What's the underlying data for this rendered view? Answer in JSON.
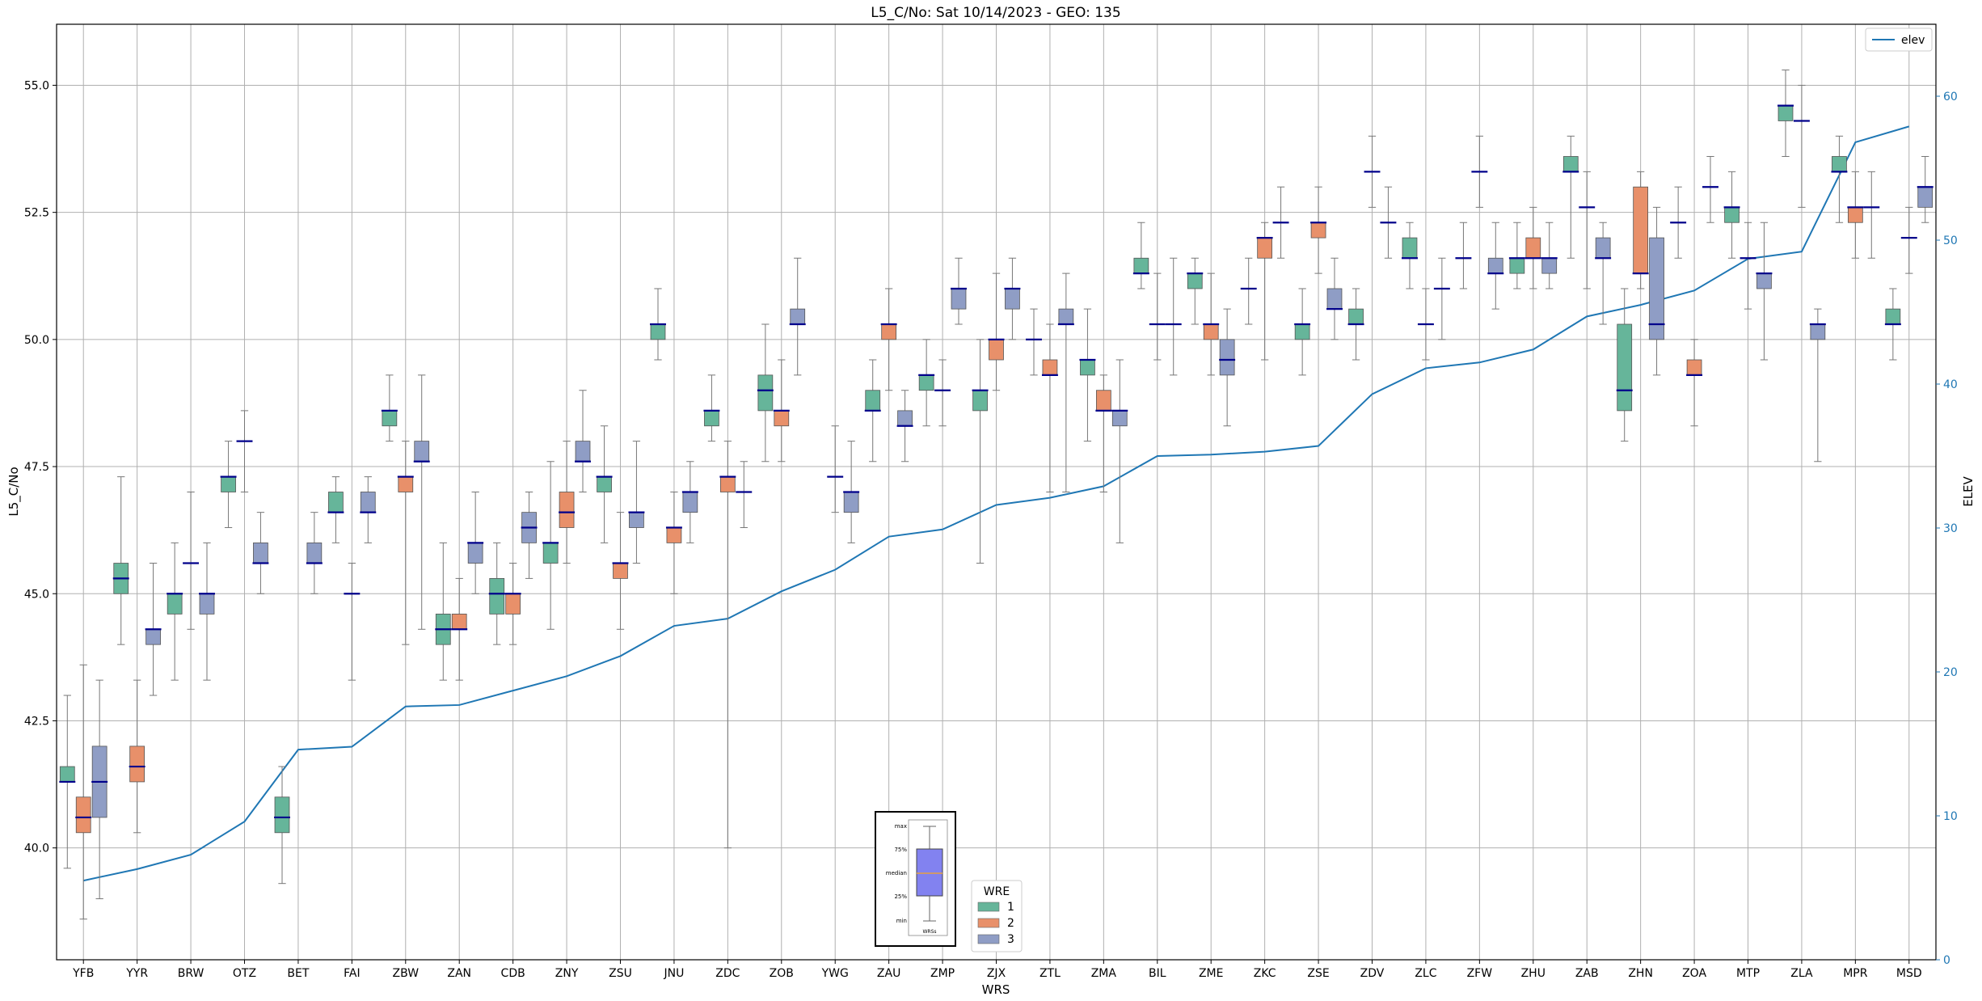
{
  "chart_data": {
    "type": "box",
    "title": "L5_C/No: Sat 10/14/2023 - GEO: 135",
    "xlabel": "WRS",
    "ylabel": "L5_C/No",
    "y2label": "ELEV",
    "ylim": [
      37.8,
      56.2
    ],
    "y2lim": [
      0,
      65
    ],
    "yticks": [
      "40.0",
      "42.5",
      "45.0",
      "47.5",
      "50.0",
      "52.5",
      "55.0"
    ],
    "y2ticks": [
      "0",
      "10",
      "20",
      "30",
      "40",
      "50",
      "60"
    ],
    "grid": true,
    "categories": [
      "YFB",
      "YYR",
      "BRW",
      "OTZ",
      "BET",
      "FAI",
      "ZBW",
      "ZAN",
      "CDB",
      "ZNY",
      "ZSU",
      "JNU",
      "ZDC",
      "ZOB",
      "YWG",
      "ZAU",
      "ZMP",
      "ZJX",
      "ZTL",
      "ZMA",
      "BIL",
      "ZME",
      "ZKC",
      "ZSE",
      "ZDV",
      "ZLC",
      "ZFW",
      "ZHU",
      "ZAB",
      "ZHN",
      "ZOA",
      "MTP",
      "ZLA",
      "MPR",
      "MSD"
    ],
    "wre_colors": {
      "1": "#66b59a",
      "2": "#e8906a",
      "3": "#8f9dc5"
    },
    "median_color": "#00008b",
    "whisker_color": "#777777",
    "elev_color": "#1f77b4",
    "boxes": [
      {
        "cat": "YFB",
        "wre": 1,
        "min": 39.6,
        "q1": 41.3,
        "med": 41.3,
        "q3": 41.6,
        "max": 43.0
      },
      {
        "cat": "YFB",
        "wre": 2,
        "min": 38.6,
        "q1": 40.3,
        "med": 40.6,
        "q3": 41.0,
        "max": 43.6
      },
      {
        "cat": "YFB",
        "wre": 3,
        "min": 39.0,
        "q1": 40.6,
        "med": 41.3,
        "q3": 42.0,
        "max": 43.3
      },
      {
        "cat": "YYR",
        "wre": 1,
        "min": 44.0,
        "q1": 45.0,
        "med": 45.3,
        "q3": 45.6,
        "max": 47.3
      },
      {
        "cat": "YYR",
        "wre": 2,
        "min": 40.3,
        "q1": 41.3,
        "med": 41.6,
        "q3": 42.0,
        "max": 43.3
      },
      {
        "cat": "YYR",
        "wre": 3,
        "min": 43.0,
        "q1": 44.0,
        "med": 44.3,
        "q3": 44.3,
        "max": 45.6
      },
      {
        "cat": "BRW",
        "wre": 1,
        "min": 43.3,
        "q1": 44.6,
        "med": 45.0,
        "q3": 45.0,
        "max": 46.0
      },
      {
        "cat": "BRW",
        "wre": 2,
        "min": 44.3,
        "q1": 45.6,
        "med": 45.6,
        "q3": 45.6,
        "max": 47.0
      },
      {
        "cat": "BRW",
        "wre": 3,
        "min": 43.3,
        "q1": 44.6,
        "med": 45.0,
        "q3": 45.0,
        "max": 46.0
      },
      {
        "cat": "OTZ",
        "wre": 1,
        "min": 46.3,
        "q1": 47.0,
        "med": 47.3,
        "q3": 47.3,
        "max": 48.0
      },
      {
        "cat": "OTZ",
        "wre": 2,
        "min": 47.0,
        "q1": 48.0,
        "med": 48.0,
        "q3": 48.0,
        "max": 48.6
      },
      {
        "cat": "OTZ",
        "wre": 3,
        "min": 45.0,
        "q1": 45.6,
        "med": 45.6,
        "q3": 46.0,
        "max": 46.6
      },
      {
        "cat": "BET",
        "wre": 1,
        "min": 39.3,
        "q1": 40.3,
        "med": 40.6,
        "q3": 41.0,
        "max": 41.6
      },
      {
        "cat": "BET",
        "wre": 3,
        "min": 45.0,
        "q1": 45.6,
        "med": 45.6,
        "q3": 46.0,
        "max": 46.6
      },
      {
        "cat": "FAI",
        "wre": 1,
        "min": 46.0,
        "q1": 46.6,
        "med": 46.6,
        "q3": 47.0,
        "max": 47.3
      },
      {
        "cat": "FAI",
        "wre": 2,
        "min": 43.3,
        "q1": 45.0,
        "med": 45.0,
        "q3": 45.0,
        "max": 45.6
      },
      {
        "cat": "FAI",
        "wre": 3,
        "min": 46.0,
        "q1": 46.6,
        "med": 46.6,
        "q3": 47.0,
        "max": 47.3
      },
      {
        "cat": "ZBW",
        "wre": 1,
        "min": 48.0,
        "q1": 48.3,
        "med": 48.6,
        "q3": 48.6,
        "max": 49.3
      },
      {
        "cat": "ZBW",
        "wre": 2,
        "min": 44.0,
        "q1": 47.0,
        "med": 47.3,
        "q3": 47.3,
        "max": 48.0
      },
      {
        "cat": "ZBW",
        "wre": 3,
        "min": 44.3,
        "q1": 47.6,
        "med": 47.6,
        "q3": 48.0,
        "max": 49.3
      },
      {
        "cat": "ZAN",
        "wre": 1,
        "min": 43.3,
        "q1": 44.0,
        "med": 44.3,
        "q3": 44.6,
        "max": 46.0
      },
      {
        "cat": "ZAN",
        "wre": 2,
        "min": 43.3,
        "q1": 44.3,
        "med": 44.3,
        "q3": 44.6,
        "max": 45.3
      },
      {
        "cat": "ZAN",
        "wre": 3,
        "min": 45.0,
        "q1": 45.6,
        "med": 46.0,
        "q3": 46.0,
        "max": 47.0
      },
      {
        "cat": "CDB",
        "wre": 1,
        "min": 44.0,
        "q1": 44.6,
        "med": 45.0,
        "q3": 45.3,
        "max": 46.0
      },
      {
        "cat": "CDB",
        "wre": 2,
        "min": 44.0,
        "q1": 44.6,
        "med": 45.0,
        "q3": 45.0,
        "max": 45.6
      },
      {
        "cat": "CDB",
        "wre": 3,
        "min": 45.3,
        "q1": 46.0,
        "med": 46.3,
        "q3": 46.6,
        "max": 47.0
      },
      {
        "cat": "ZNY",
        "wre": 1,
        "min": 44.3,
        "q1": 45.6,
        "med": 46.0,
        "q3": 46.0,
        "max": 47.6
      },
      {
        "cat": "ZNY",
        "wre": 2,
        "min": 45.6,
        "q1": 46.3,
        "med": 46.6,
        "q3": 47.0,
        "max": 48.0
      },
      {
        "cat": "ZNY",
        "wre": 3,
        "min": 47.0,
        "q1": 47.6,
        "med": 47.6,
        "q3": 48.0,
        "max": 49.0
      },
      {
        "cat": "ZSU",
        "wre": 1,
        "min": 46.0,
        "q1": 47.0,
        "med": 47.3,
        "q3": 47.3,
        "max": 48.3
      },
      {
        "cat": "ZSU",
        "wre": 2,
        "min": 44.3,
        "q1": 45.3,
        "med": 45.6,
        "q3": 45.6,
        "max": 46.6
      },
      {
        "cat": "ZSU",
        "wre": 3,
        "min": 45.6,
        "q1": 46.3,
        "med": 46.6,
        "q3": 46.6,
        "max": 48.0
      },
      {
        "cat": "JNU",
        "wre": 1,
        "min": 49.6,
        "q1": 50.0,
        "med": 50.3,
        "q3": 50.3,
        "max": 51.0
      },
      {
        "cat": "JNU",
        "wre": 2,
        "min": 45.0,
        "q1": 46.0,
        "med": 46.3,
        "q3": 46.3,
        "max": 47.0
      },
      {
        "cat": "JNU",
        "wre": 3,
        "min": 46.0,
        "q1": 46.6,
        "med": 47.0,
        "q3": 47.0,
        "max": 47.6
      },
      {
        "cat": "ZDC",
        "wre": 1,
        "min": 48.0,
        "q1": 48.3,
        "med": 48.6,
        "q3": 48.6,
        "max": 49.3
      },
      {
        "cat": "ZDC",
        "wre": 2,
        "min": 40.0,
        "q1": 47.0,
        "med": 47.3,
        "q3": 47.3,
        "max": 48.0
      },
      {
        "cat": "ZDC",
        "wre": 3,
        "min": 46.3,
        "q1": 47.0,
        "med": 47.0,
        "q3": 47.0,
        "max": 47.6
      },
      {
        "cat": "ZOB",
        "wre": 1,
        "min": 47.6,
        "q1": 48.6,
        "med": 49.0,
        "q3": 49.3,
        "max": 50.3
      },
      {
        "cat": "ZOB",
        "wre": 2,
        "min": 47.6,
        "q1": 48.3,
        "med": 48.6,
        "q3": 48.6,
        "max": 49.6
      },
      {
        "cat": "ZOB",
        "wre": 3,
        "min": 49.3,
        "q1": 50.3,
        "med": 50.3,
        "q3": 50.6,
        "max": 51.6
      },
      {
        "cat": "YWG",
        "wre": 2,
        "min": 46.6,
        "q1": 47.3,
        "med": 47.3,
        "q3": 47.3,
        "max": 48.3
      },
      {
        "cat": "YWG",
        "wre": 3,
        "min": 46.0,
        "q1": 46.6,
        "med": 47.0,
        "q3": 47.0,
        "max": 48.0
      },
      {
        "cat": "ZAU",
        "wre": 1,
        "min": 47.6,
        "q1": 48.6,
        "med": 48.6,
        "q3": 49.0,
        "max": 49.6
      },
      {
        "cat": "ZAU",
        "wre": 2,
        "min": 49.0,
        "q1": 50.0,
        "med": 50.3,
        "q3": 50.3,
        "max": 51.0
      },
      {
        "cat": "ZAU",
        "wre": 3,
        "min": 47.6,
        "q1": 48.3,
        "med": 48.3,
        "q3": 48.6,
        "max": 49.0
      },
      {
        "cat": "ZMP",
        "wre": 1,
        "min": 48.3,
        "q1": 49.0,
        "med": 49.3,
        "q3": 49.3,
        "max": 50.0
      },
      {
        "cat": "ZMP",
        "wre": 2,
        "min": 48.3,
        "q1": 49.0,
        "med": 49.0,
        "q3": 49.0,
        "max": 49.6
      },
      {
        "cat": "ZMP",
        "wre": 3,
        "min": 50.3,
        "q1": 50.6,
        "med": 51.0,
        "q3": 51.0,
        "max": 51.6
      },
      {
        "cat": "ZJX",
        "wre": 1,
        "min": 45.6,
        "q1": 48.6,
        "med": 49.0,
        "q3": 49.0,
        "max": 50.0
      },
      {
        "cat": "ZJX",
        "wre": 2,
        "min": 49.0,
        "q1": 49.6,
        "med": 50.0,
        "q3": 50.0,
        "max": 51.3
      },
      {
        "cat": "ZJX",
        "wre": 3,
        "min": 50.0,
        "q1": 50.6,
        "med": 51.0,
        "q3": 51.0,
        "max": 51.6
      },
      {
        "cat": "ZTL",
        "wre": 1,
        "min": 49.3,
        "q1": 50.0,
        "med": 50.0,
        "q3": 50.0,
        "max": 50.6
      },
      {
        "cat": "ZTL",
        "wre": 2,
        "min": 47.0,
        "q1": 49.3,
        "med": 49.3,
        "q3": 49.6,
        "max": 50.3
      },
      {
        "cat": "ZTL",
        "wre": 3,
        "min": 47.0,
        "q1": 50.3,
        "med": 50.3,
        "q3": 50.6,
        "max": 51.3
      },
      {
        "cat": "ZMA",
        "wre": 1,
        "min": 48.0,
        "q1": 49.3,
        "med": 49.6,
        "q3": 49.6,
        "max": 50.6
      },
      {
        "cat": "ZMA",
        "wre": 2,
        "min": 47.0,
        "q1": 48.6,
        "med": 48.6,
        "q3": 49.0,
        "max": 49.3
      },
      {
        "cat": "ZMA",
        "wre": 3,
        "min": 46.0,
        "q1": 48.3,
        "med": 48.6,
        "q3": 48.6,
        "max": 49.6
      },
      {
        "cat": "BIL",
        "wre": 1,
        "min": 51.0,
        "q1": 51.3,
        "med": 51.3,
        "q3": 51.6,
        "max": 52.3
      },
      {
        "cat": "BIL",
        "wre": 2,
        "min": 49.6,
        "q1": 50.3,
        "med": 50.3,
        "q3": 50.3,
        "max": 51.3
      },
      {
        "cat": "BIL",
        "wre": 3,
        "min": 49.3,
        "q1": 50.3,
        "med": 50.3,
        "q3": 50.3,
        "max": 51.6
      },
      {
        "cat": "ZME",
        "wre": 1,
        "min": 50.3,
        "q1": 51.0,
        "med": 51.3,
        "q3": 51.3,
        "max": 51.6
      },
      {
        "cat": "ZME",
        "wre": 2,
        "min": 49.3,
        "q1": 50.0,
        "med": 50.3,
        "q3": 50.3,
        "max": 51.3
      },
      {
        "cat": "ZME",
        "wre": 3,
        "min": 48.3,
        "q1": 49.3,
        "med": 49.6,
        "q3": 50.0,
        "max": 50.6
      },
      {
        "cat": "ZKC",
        "wre": 1,
        "min": 50.3,
        "q1": 51.0,
        "med": 51.0,
        "q3": 51.0,
        "max": 51.6
      },
      {
        "cat": "ZKC",
        "wre": 2,
        "min": 49.6,
        "q1": 51.6,
        "med": 52.0,
        "q3": 52.0,
        "max": 52.3
      },
      {
        "cat": "ZKC",
        "wre": 3,
        "min": 51.6,
        "q1": 52.3,
        "med": 52.3,
        "q3": 52.3,
        "max": 53.0
      },
      {
        "cat": "ZSE",
        "wre": 1,
        "min": 49.3,
        "q1": 50.0,
        "med": 50.3,
        "q3": 50.3,
        "max": 51.0
      },
      {
        "cat": "ZSE",
        "wre": 2,
        "min": 51.3,
        "q1": 52.0,
        "med": 52.3,
        "q3": 52.3,
        "max": 53.0
      },
      {
        "cat": "ZSE",
        "wre": 3,
        "min": 50.0,
        "q1": 50.6,
        "med": 50.6,
        "q3": 51.0,
        "max": 51.6
      },
      {
        "cat": "ZDV",
        "wre": 1,
        "min": 49.6,
        "q1": 50.3,
        "med": 50.3,
        "q3": 50.6,
        "max": 51.0
      },
      {
        "cat": "ZDV",
        "wre": 2,
        "min": 52.6,
        "q1": 53.3,
        "med": 53.3,
        "q3": 53.3,
        "max": 54.0
      },
      {
        "cat": "ZDV",
        "wre": 3,
        "min": 51.6,
        "q1": 52.3,
        "med": 52.3,
        "q3": 52.3,
        "max": 53.0
      },
      {
        "cat": "ZLC",
        "wre": 1,
        "min": 51.0,
        "q1": 51.6,
        "med": 51.6,
        "q3": 52.0,
        "max": 52.3
      },
      {
        "cat": "ZLC",
        "wre": 2,
        "min": 49.6,
        "q1": 50.3,
        "med": 50.3,
        "q3": 50.3,
        "max": 51.0
      },
      {
        "cat": "ZLC",
        "wre": 3,
        "min": 50.0,
        "q1": 51.0,
        "med": 51.0,
        "q3": 51.0,
        "max": 51.6
      },
      {
        "cat": "ZFW",
        "wre": 1,
        "min": 51.0,
        "q1": 51.6,
        "med": 51.6,
        "q3": 51.6,
        "max": 52.3
      },
      {
        "cat": "ZFW",
        "wre": 2,
        "min": 52.6,
        "q1": 53.3,
        "med": 53.3,
        "q3": 53.3,
        "max": 54.0
      },
      {
        "cat": "ZFW",
        "wre": 3,
        "min": 50.6,
        "q1": 51.3,
        "med": 51.3,
        "q3": 51.6,
        "max": 52.3
      },
      {
        "cat": "ZHU",
        "wre": 1,
        "min": 51.0,
        "q1": 51.3,
        "med": 51.6,
        "q3": 51.6,
        "max": 52.3
      },
      {
        "cat": "ZHU",
        "wre": 2,
        "min": 51.0,
        "q1": 51.6,
        "med": 51.6,
        "q3": 52.0,
        "max": 52.6
      },
      {
        "cat": "ZHU",
        "wre": 3,
        "min": 51.0,
        "q1": 51.3,
        "med": 51.6,
        "q3": 51.6,
        "max": 52.3
      },
      {
        "cat": "ZAB",
        "wre": 1,
        "min": 51.6,
        "q1": 53.3,
        "med": 53.3,
        "q3": 53.6,
        "max": 54.0
      },
      {
        "cat": "ZAB",
        "wre": 2,
        "min": 51.0,
        "q1": 52.6,
        "med": 52.6,
        "q3": 52.6,
        "max": 53.3
      },
      {
        "cat": "ZAB",
        "wre": 3,
        "min": 50.3,
        "q1": 51.6,
        "med": 51.6,
        "q3": 52.0,
        "max": 52.3
      },
      {
        "cat": "ZHN",
        "wre": 1,
        "min": 48.0,
        "q1": 48.6,
        "med": 49.0,
        "q3": 50.3,
        "max": 51.0
      },
      {
        "cat": "ZHN",
        "wre": 2,
        "min": 51.0,
        "q1": 51.3,
        "med": 51.3,
        "q3": 53.0,
        "max": 53.3
      },
      {
        "cat": "ZHN",
        "wre": 3,
        "min": 49.3,
        "q1": 50.0,
        "med": 50.3,
        "q3": 52.0,
        "max": 52.6
      },
      {
        "cat": "ZOA",
        "wre": 1,
        "min": 51.6,
        "q1": 52.3,
        "med": 52.3,
        "q3": 52.3,
        "max": 53.0
      },
      {
        "cat": "ZOA",
        "wre": 2,
        "min": 48.3,
        "q1": 49.3,
        "med": 49.3,
        "q3": 49.6,
        "max": 50.0
      },
      {
        "cat": "ZOA",
        "wre": 3,
        "min": 52.3,
        "q1": 53.0,
        "med": 53.0,
        "q3": 53.0,
        "max": 53.6
      },
      {
        "cat": "MTP",
        "wre": 1,
        "min": 51.6,
        "q1": 52.3,
        "med": 52.6,
        "q3": 52.6,
        "max": 53.3
      },
      {
        "cat": "MTP",
        "wre": 2,
        "min": 50.6,
        "q1": 51.6,
        "med": 51.6,
        "q3": 51.6,
        "max": 52.3
      },
      {
        "cat": "MTP",
        "wre": 3,
        "min": 49.6,
        "q1": 51.0,
        "med": 51.3,
        "q3": 51.3,
        "max": 52.3
      },
      {
        "cat": "ZLA",
        "wre": 1,
        "min": 53.6,
        "q1": 54.3,
        "med": 54.6,
        "q3": 54.6,
        "max": 55.3
      },
      {
        "cat": "ZLA",
        "wre": 2,
        "min": 52.6,
        "q1": 54.3,
        "med": 54.3,
        "q3": 54.3,
        "max": 55.0
      },
      {
        "cat": "ZLA",
        "wre": 3,
        "min": 47.6,
        "q1": 50.0,
        "med": 50.3,
        "q3": 50.3,
        "max": 50.6
      },
      {
        "cat": "MPR",
        "wre": 1,
        "min": 52.3,
        "q1": 53.3,
        "med": 53.3,
        "q3": 53.6,
        "max": 54.0
      },
      {
        "cat": "MPR",
        "wre": 2,
        "min": 51.6,
        "q1": 52.3,
        "med": 52.6,
        "q3": 52.6,
        "max": 53.3
      },
      {
        "cat": "MPR",
        "wre": 3,
        "min": 51.6,
        "q1": 52.6,
        "med": 52.6,
        "q3": 52.6,
        "max": 53.3
      },
      {
        "cat": "MSD",
        "wre": 1,
        "min": 49.6,
        "q1": 50.3,
        "med": 50.3,
        "q3": 50.6,
        "max": 51.0
      },
      {
        "cat": "MSD",
        "wre": 2,
        "min": 51.3,
        "q1": 52.0,
        "med": 52.0,
        "q3": 52.0,
        "max": 52.6
      },
      {
        "cat": "MSD",
        "wre": 3,
        "min": 52.3,
        "q1": 52.6,
        "med": 53.0,
        "q3": 53.0,
        "max": 53.6
      }
    ],
    "elev_series": {
      "name": "elev",
      "values": [
        5.5,
        6.3,
        7.3,
        9.6,
        14.6,
        14.8,
        17.6,
        17.7,
        18.7,
        19.7,
        21.1,
        23.2,
        23.7,
        25.6,
        27.1,
        29.4,
        29.9,
        31.6,
        32.1,
        32.9,
        35.0,
        35.1,
        35.3,
        35.7,
        39.3,
        41.1,
        41.5,
        42.4,
        44.7,
        45.5,
        46.5,
        48.7,
        49.2,
        56.8,
        57.9
      ]
    },
    "legend_elev": {
      "label": "elev",
      "position": "upper right"
    },
    "legend_wre": {
      "title": "WRE",
      "entries": [
        "1",
        "2",
        "3"
      ],
      "position": "lower center"
    },
    "key_box": {
      "labels": [
        "max",
        "75%",
        "median",
        "25%",
        "min"
      ],
      "xlabel": "WRSs"
    }
  }
}
